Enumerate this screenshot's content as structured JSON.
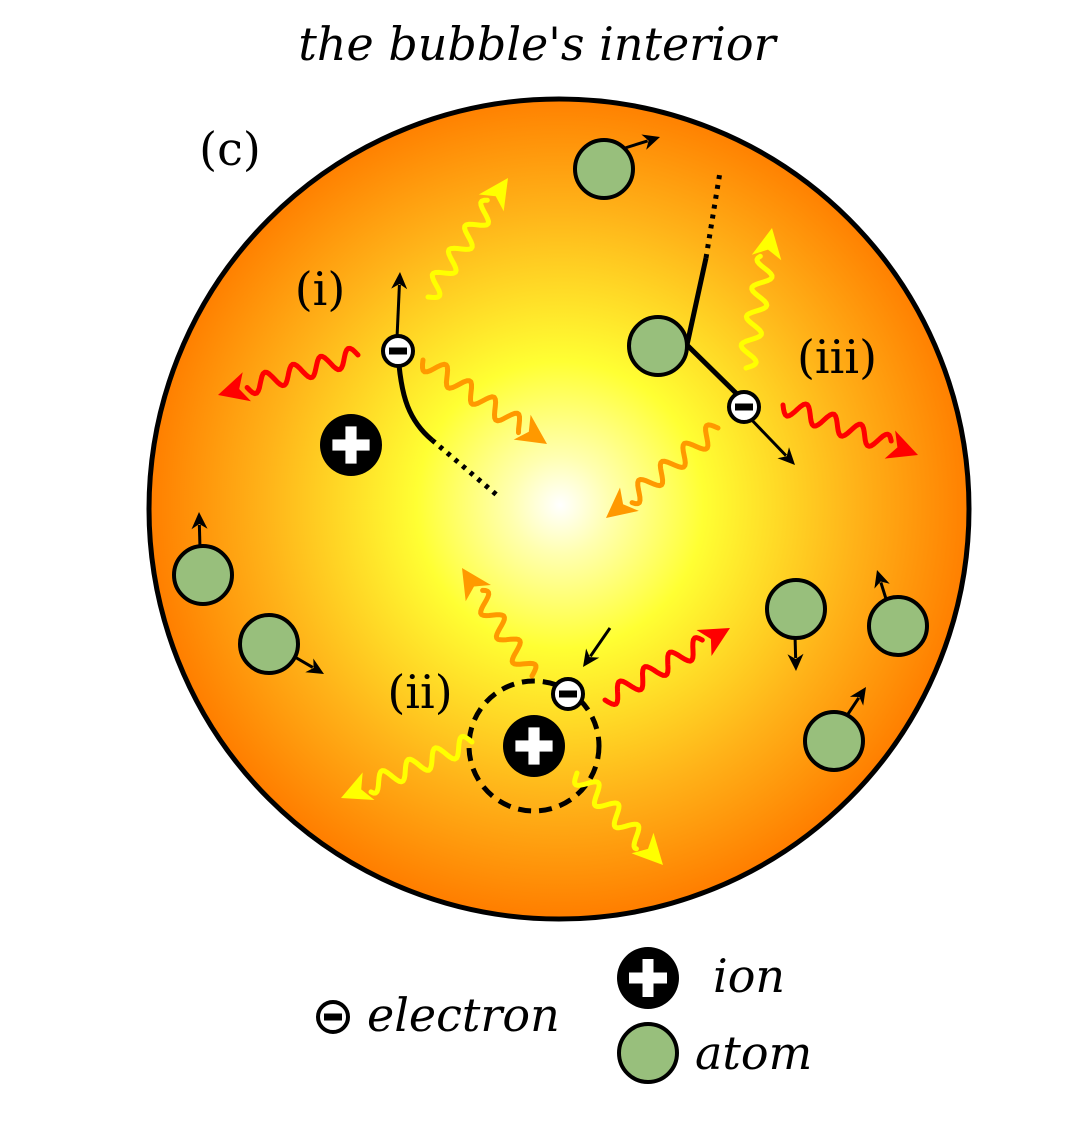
{
  "title": "the bubble's interior",
  "panel_label": "(c)",
  "process_labels": {
    "i": "(i)",
    "ii": "(ii)",
    "iii": "(iii)"
  },
  "legend": {
    "electron": "electron",
    "ion": "ion",
    "atom": "atom"
  },
  "colors": {
    "bubble_center": "#ffffff",
    "bubble_mid": "#ffff33",
    "bubble_edge": "#ff7f00",
    "atom_fill": "#98bf7c",
    "ion_fill": "#000000",
    "photon_red": "#ff0000",
    "photon_orange": "#ff9900",
    "photon_yellow": "#ffff00"
  },
  "icons": [
    "electron-icon",
    "ion-icon",
    "atom-icon",
    "photon-arrow-icon",
    "velocity-arrow-icon"
  ]
}
